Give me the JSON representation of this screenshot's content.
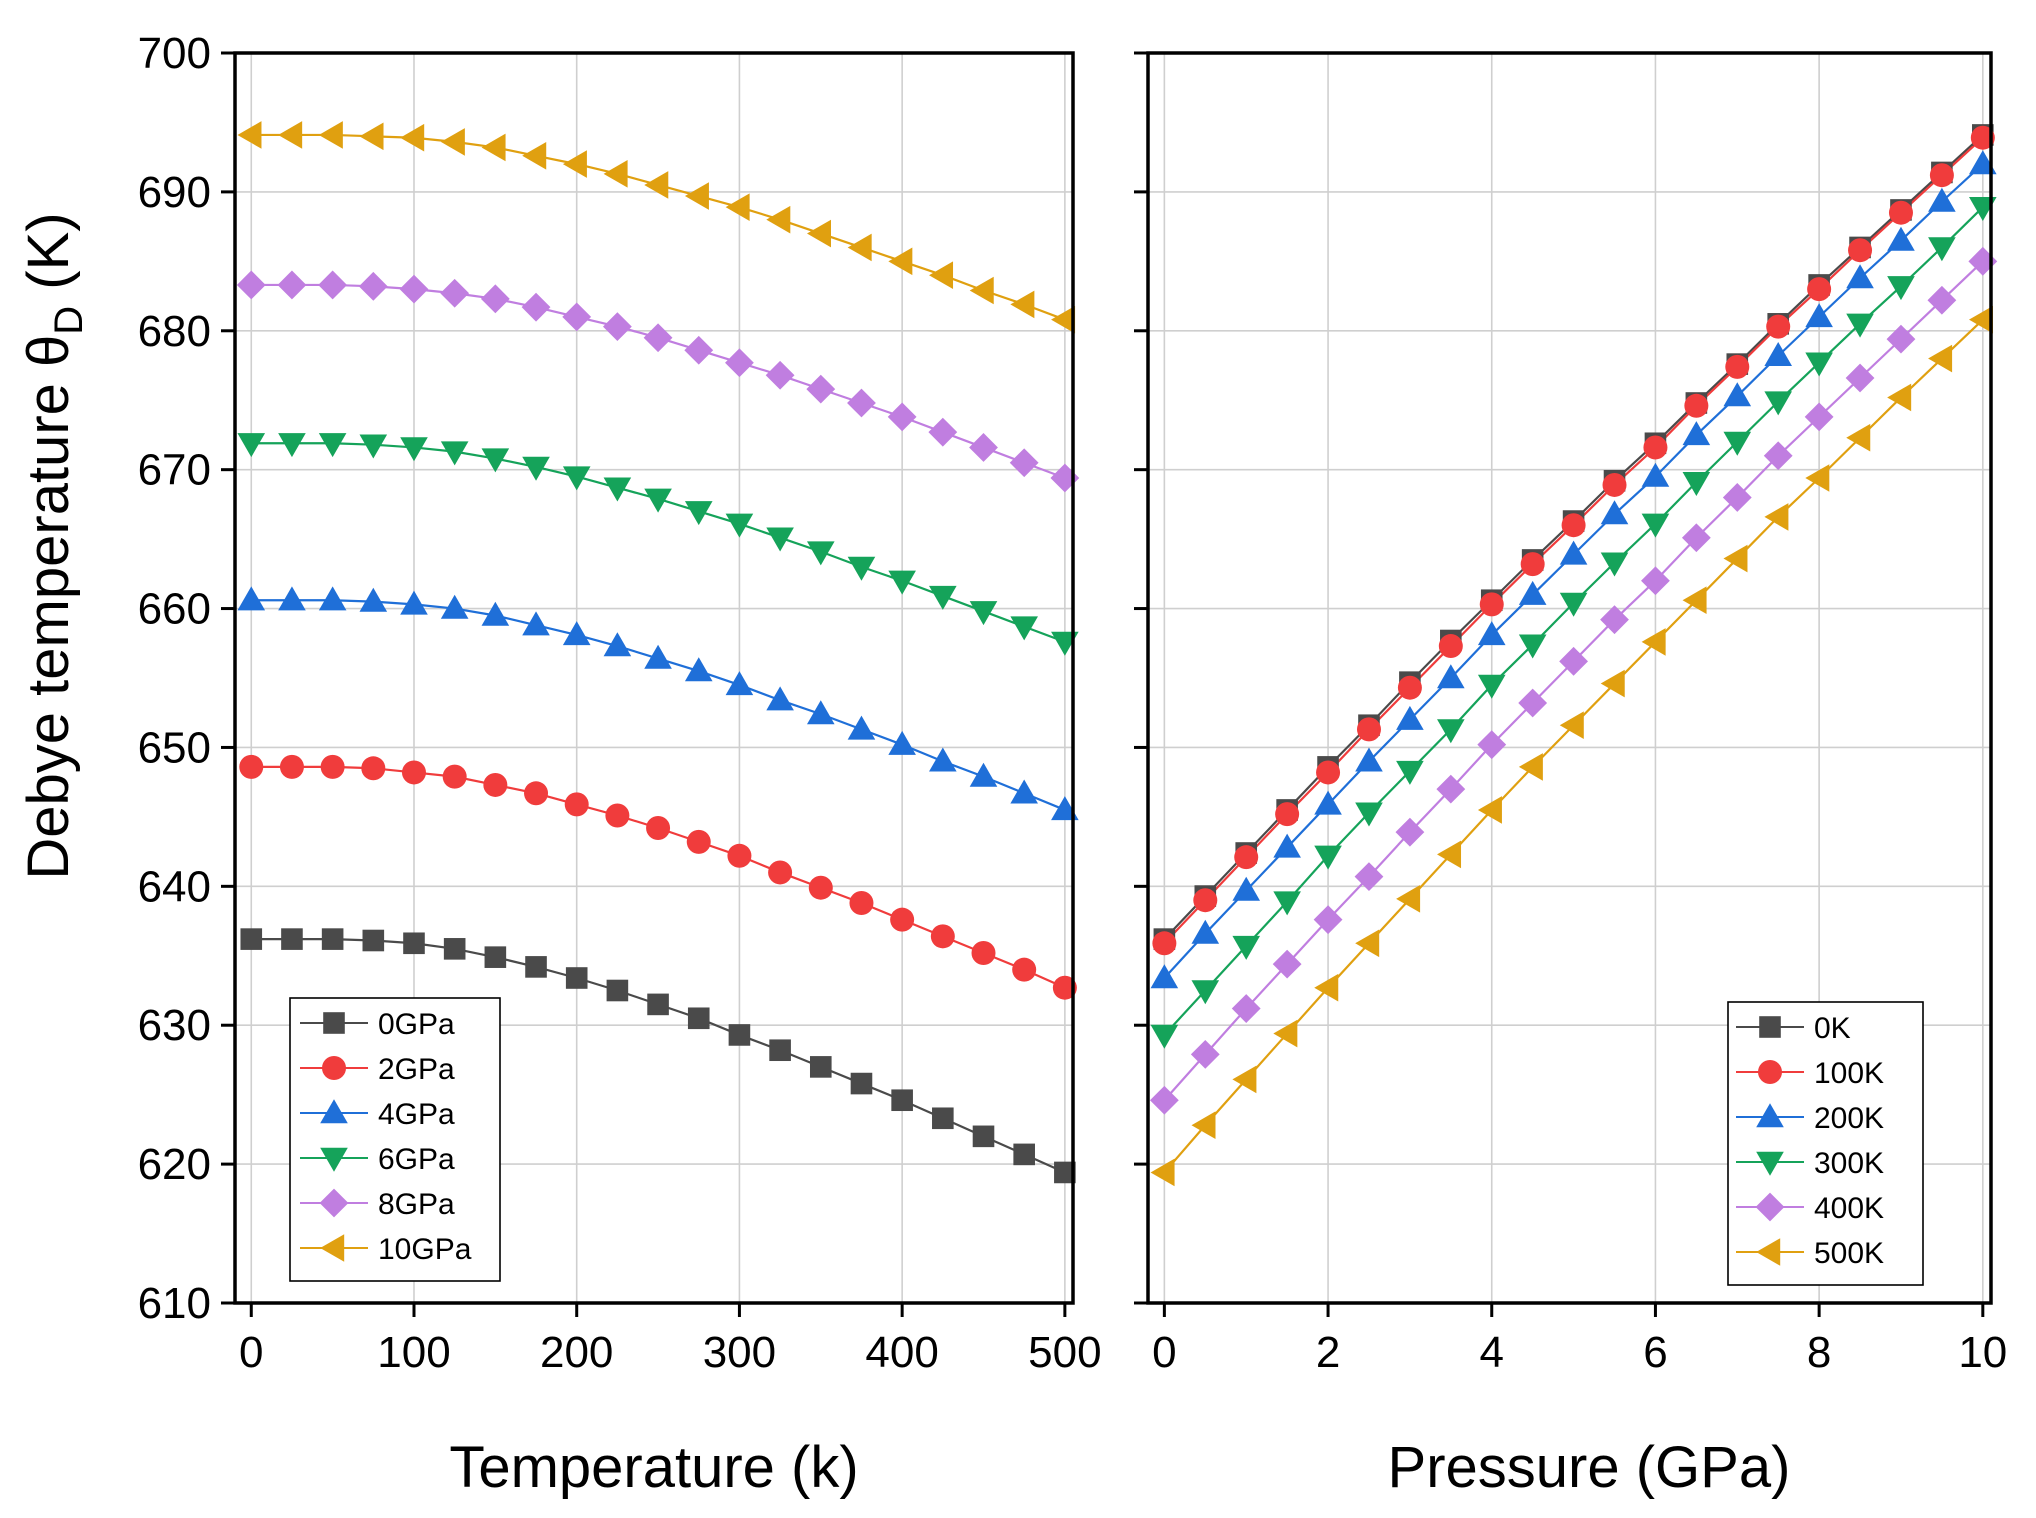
{
  "chart_data": [
    {
      "type": "line",
      "panel": "left",
      "title": "",
      "xlabel": "Temperature (k)",
      "ylabel": "Debye temperature θ",
      "ylabel_subscript": "D",
      "ylabel_unit": "(K)",
      "xlim": [
        -10,
        505
      ],
      "ylim": [
        610,
        700
      ],
      "xticks": [
        "0",
        "100",
        "200",
        "300",
        "400",
        "500"
      ],
      "yticks": [
        "610",
        "620",
        "630",
        "640",
        "650",
        "660",
        "670",
        "680",
        "690",
        "700"
      ],
      "grid": true,
      "legend_position": "bottom-left",
      "x": [
        0,
        25,
        50,
        75,
        100,
        125,
        150,
        175,
        200,
        225,
        250,
        275,
        300,
        325,
        350,
        375,
        400,
        425,
        450,
        475,
        500
      ],
      "series": [
        {
          "name": "0GPa",
          "color": "#4a4a4a",
          "marker": "square",
          "values": [
            636.2,
            636.2,
            636.2,
            636.1,
            635.9,
            635.5,
            634.9,
            634.2,
            633.4,
            632.5,
            631.5,
            630.5,
            629.3,
            628.2,
            627.0,
            625.8,
            624.6,
            623.3,
            622.0,
            620.7,
            619.4
          ]
        },
        {
          "name": "2GPa",
          "color": "#f03c3c",
          "marker": "circle",
          "values": [
            648.6,
            648.6,
            648.6,
            648.5,
            648.2,
            647.9,
            647.3,
            646.7,
            645.9,
            645.1,
            644.2,
            643.2,
            642.2,
            641.0,
            639.9,
            638.8,
            637.6,
            636.4,
            635.2,
            634.0,
            632.7
          ]
        },
        {
          "name": "4GPa",
          "color": "#1f6fd8",
          "marker": "triangle-up",
          "values": [
            660.6,
            660.6,
            660.6,
            660.5,
            660.3,
            660.0,
            659.5,
            658.8,
            658.1,
            657.3,
            656.4,
            655.5,
            654.5,
            653.4,
            652.4,
            651.3,
            650.2,
            649.0,
            647.9,
            646.7,
            645.5
          ]
        },
        {
          "name": "6GPa",
          "color": "#15a35a",
          "marker": "triangle-down",
          "values": [
            671.9,
            671.9,
            671.9,
            671.8,
            671.6,
            671.3,
            670.8,
            670.2,
            669.5,
            668.7,
            667.9,
            667.0,
            666.1,
            665.1,
            664.1,
            663.0,
            662.0,
            660.9,
            659.8,
            658.7,
            657.6
          ]
        },
        {
          "name": "8GPa",
          "color": "#c07ee0",
          "marker": "diamond",
          "values": [
            683.3,
            683.3,
            683.3,
            683.2,
            683.0,
            682.7,
            682.3,
            681.7,
            681.0,
            680.3,
            679.5,
            678.6,
            677.7,
            676.8,
            675.8,
            674.8,
            673.8,
            672.7,
            671.6,
            670.5,
            669.4
          ]
        },
        {
          "name": "10GPa",
          "color": "#e0a010",
          "marker": "triangle-left",
          "values": [
            694.1,
            694.1,
            694.1,
            694.0,
            693.9,
            693.6,
            693.2,
            692.6,
            692.0,
            691.3,
            690.5,
            689.7,
            688.9,
            688.0,
            687.0,
            686.0,
            685.0,
            684.0,
            682.9,
            681.9,
            680.8
          ]
        }
      ]
    },
    {
      "type": "line",
      "panel": "right",
      "title": "",
      "xlabel": "Pressure (GPa)",
      "ylabel": "",
      "xlim": [
        -0.2,
        10.1
      ],
      "ylim": [
        610,
        700
      ],
      "xticks": [
        "0",
        "2",
        "4",
        "6",
        "8",
        "10"
      ],
      "grid": true,
      "legend_position": "bottom-right",
      "x": [
        0,
        0.5,
        1,
        1.5,
        2,
        2.5,
        3,
        3.5,
        4,
        4.5,
        5,
        5.5,
        6,
        6.5,
        7,
        7.5,
        8,
        8.5,
        9,
        9.5,
        10
      ],
      "series": [
        {
          "name": "0K",
          "color": "#4a4a4a",
          "marker": "square",
          "values": [
            636.2,
            639.3,
            642.4,
            645.5,
            648.6,
            651.6,
            654.7,
            657.7,
            660.6,
            663.5,
            666.3,
            669.2,
            671.9,
            674.8,
            677.6,
            680.5,
            683.3,
            686.0,
            688.7,
            691.4,
            694.1
          ]
        },
        {
          "name": "100K",
          "color": "#f03c3c",
          "marker": "circle",
          "values": [
            635.9,
            639.0,
            642.1,
            645.2,
            648.2,
            651.3,
            654.3,
            657.3,
            660.3,
            663.2,
            666.0,
            668.9,
            671.6,
            674.6,
            677.4,
            680.3,
            683.0,
            685.8,
            688.5,
            691.2,
            693.9
          ]
        },
        {
          "name": "200K",
          "color": "#1f6fd8",
          "marker": "triangle-up",
          "values": [
            633.4,
            636.6,
            639.7,
            642.8,
            645.9,
            649.0,
            652.0,
            655.0,
            658.1,
            661.0,
            663.9,
            666.8,
            669.5,
            672.5,
            675.3,
            678.2,
            681.0,
            683.8,
            686.5,
            689.3,
            692.0
          ]
        },
        {
          "name": "300K",
          "color": "#15a35a",
          "marker": "triangle-down",
          "values": [
            629.3,
            632.5,
            635.7,
            638.9,
            642.2,
            645.3,
            648.3,
            651.3,
            654.5,
            657.4,
            660.4,
            663.3,
            666.1,
            669.1,
            672.0,
            674.9,
            677.7,
            680.5,
            683.2,
            686.0,
            688.9
          ]
        },
        {
          "name": "400K",
          "color": "#c07ee0",
          "marker": "diamond",
          "values": [
            624.6,
            627.9,
            631.2,
            634.4,
            637.6,
            640.7,
            643.9,
            647.0,
            650.2,
            653.2,
            656.2,
            659.2,
            662.0,
            665.1,
            668.0,
            671.0,
            673.8,
            676.6,
            679.4,
            682.2,
            685.0
          ]
        },
        {
          "name": "500K",
          "color": "#e0a010",
          "marker": "triangle-left",
          "values": [
            619.4,
            622.8,
            626.1,
            629.4,
            632.7,
            635.9,
            639.1,
            642.3,
            645.5,
            648.6,
            651.6,
            654.6,
            657.6,
            660.6,
            663.6,
            666.6,
            669.4,
            672.3,
            675.2,
            678.0,
            680.8
          ]
        }
      ]
    }
  ]
}
